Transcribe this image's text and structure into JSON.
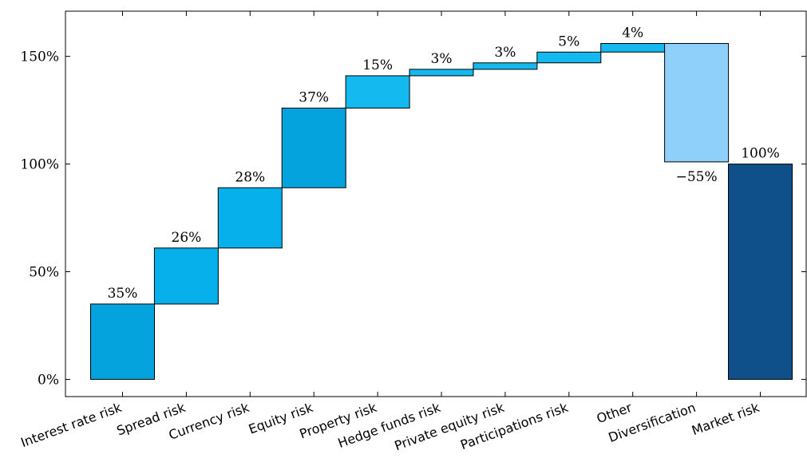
{
  "chart_data": {
    "type": "waterfall",
    "title": "",
    "xlabel": "",
    "ylabel": "",
    "ylim": [
      -8,
      171
    ],
    "yticks": [
      0,
      50,
      100,
      150
    ],
    "ytick_labels": [
      "0%",
      "50%",
      "100%",
      "150%"
    ],
    "categories": [
      "Interest rate risk",
      "Spread risk",
      "Currency risk",
      "Equity risk",
      "Property risk",
      "Hedge funds risk",
      "Private equity risk",
      "Participations risk",
      "Other",
      "Diversification",
      "Market risk"
    ],
    "values": [
      35,
      26,
      28,
      37,
      15,
      3,
      3,
      5,
      4,
      -55,
      100
    ],
    "value_labels": [
      "35%",
      "26%",
      "28%",
      "37%",
      "15%",
      "3%",
      "3%",
      "5%",
      "4%",
      "−55%",
      "100%"
    ],
    "bar_kinds": [
      "increase",
      "increase",
      "increase",
      "increase",
      "increase",
      "increase",
      "increase",
      "increase",
      "increase",
      "decrease",
      "total"
    ],
    "grid": false,
    "colors": {
      "increase_a": "#04a3de",
      "increase_b": "#06b0ea",
      "increase_c": "#14b9f0",
      "decrease": "#8fd0fa",
      "total": "#10508a"
    },
    "bar_colors": [
      "#04a3de",
      "#06b0ea",
      "#06b0ea",
      "#04a3de",
      "#14b9f0",
      "#14b9f0",
      "#14b9f0",
      "#14b9f0",
      "#14b9f0",
      "#8fd0fa",
      "#10508a"
    ]
  }
}
